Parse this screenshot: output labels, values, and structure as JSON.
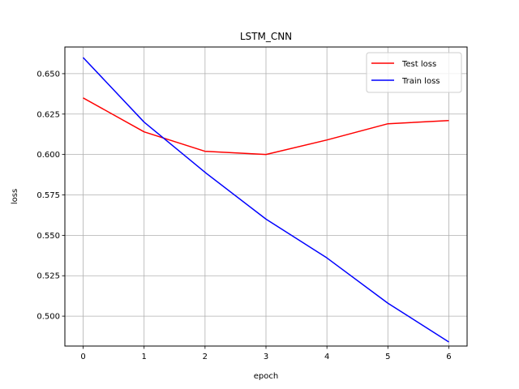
{
  "chart_data": {
    "type": "line",
    "title": "LSTM_CNN",
    "xlabel": "epoch",
    "ylabel": "loss",
    "x": [
      0,
      1,
      2,
      3,
      4,
      5,
      6
    ],
    "xlim": [
      -0.3,
      6.3
    ],
    "ylim": [
      0.4815,
      0.6665
    ],
    "xticks": [
      0,
      1,
      2,
      3,
      4,
      5,
      6
    ],
    "xtick_labels": [
      "0",
      "1",
      "2",
      "3",
      "4",
      "5",
      "6"
    ],
    "yticks": [
      0.5,
      0.525,
      0.55,
      0.575,
      0.6,
      0.625,
      0.65
    ],
    "ytick_labels": [
      "0.500",
      "0.525",
      "0.550",
      "0.575",
      "0.600",
      "0.625",
      "0.650"
    ],
    "grid": true,
    "legend_position": "top-right",
    "series": [
      {
        "name": "Test loss",
        "color": "#ff0000",
        "values": [
          0.635,
          0.614,
          0.602,
          0.6,
          0.609,
          0.619,
          0.621
        ]
      },
      {
        "name": "Train loss",
        "color": "#0000ff",
        "values": [
          0.66,
          0.62,
          0.589,
          0.56,
          0.536,
          0.508,
          0.484
        ]
      }
    ]
  }
}
